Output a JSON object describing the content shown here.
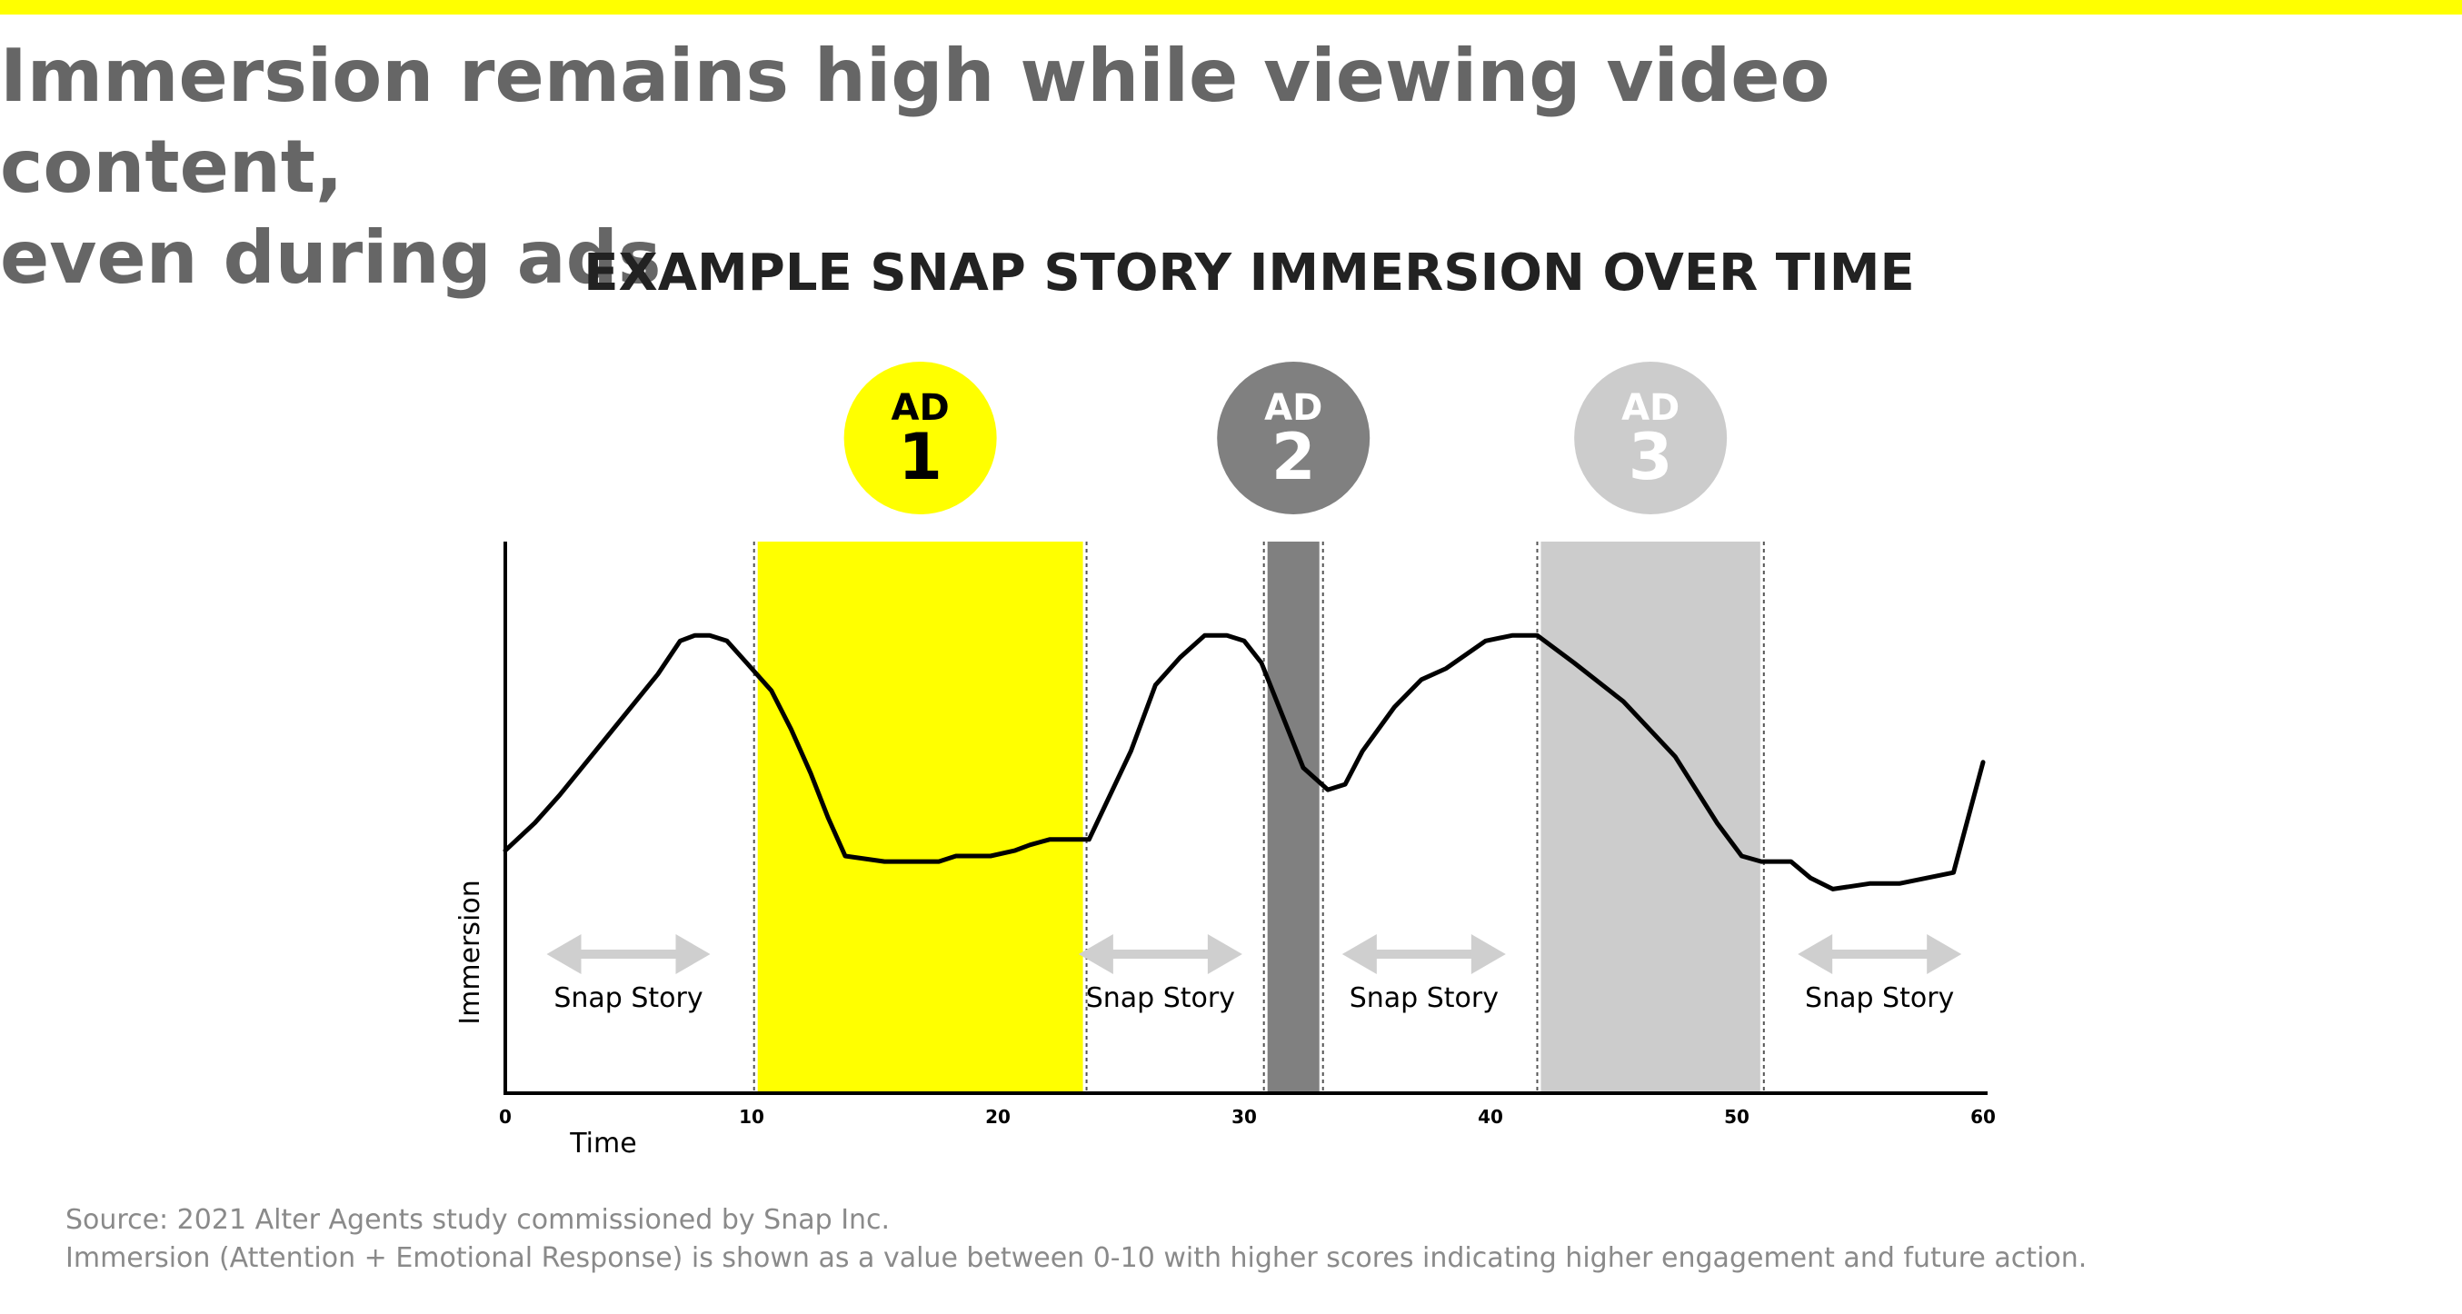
{
  "headline": {
    "line1": "Immersion remains high while viewing video content,",
    "line2": "even during ads"
  },
  "colors": {
    "accent_yellow": "#ffff00",
    "ad2_gray": "#808080",
    "ad3_gray": "#cccccc",
    "arrow_gray": "#cfcfcf",
    "headline_gray": "#666666"
  },
  "chart_data": {
    "type": "line",
    "title": "EXAMPLE SNAP STORY IMMERSION OVER TIME",
    "xlabel": "Time",
    "ylabel": "Immersion",
    "xlim": [
      0,
      60
    ],
    "ylim": [
      0,
      10
    ],
    "xticks": [
      0,
      10,
      20,
      30,
      40,
      50,
      60
    ],
    "grid": false,
    "series": [
      {
        "x": [
          0,
          1.2,
          2.2,
          4.2,
          6.2,
          7.1,
          7.7,
          8.3,
          9.0,
          9.8,
          10.8,
          11.6,
          12.4,
          13.1,
          13.8,
          15.4,
          16.8,
          17.6,
          18.3,
          19.7,
          20.7,
          21.3,
          22.1,
          23.3,
          23.7,
          25.4,
          26.4,
          27.4,
          28.4,
          29.3,
          30.0,
          30.7,
          32.4,
          33.4,
          34.1,
          34.8,
          36.1,
          37.2,
          38.2,
          39.8,
          40.9,
          41.9,
          43.4,
          45.4,
          47.5,
          49.2,
          50.2,
          51.0,
          52.2,
          53.0,
          53.9,
          55.4,
          56.6,
          58.8,
          60.0
        ],
        "y": [
          4.4,
          4.9,
          5.4,
          6.5,
          7.6,
          8.2,
          8.3,
          8.3,
          8.2,
          7.8,
          7.3,
          6.6,
          5.8,
          5.0,
          4.3,
          4.2,
          4.2,
          4.2,
          4.3,
          4.3,
          4.4,
          4.5,
          4.6,
          4.6,
          4.6,
          6.2,
          7.4,
          7.9,
          8.3,
          8.3,
          8.2,
          7.8,
          5.9,
          5.5,
          5.6,
          6.2,
          7.0,
          7.5,
          7.7,
          8.2,
          8.3,
          8.3,
          7.8,
          7.1,
          6.1,
          4.9,
          4.3,
          4.2,
          4.2,
          3.9,
          3.7,
          3.8,
          3.8,
          4.0,
          6.0
        ]
      }
    ],
    "ad_blocks": [
      {
        "label": "AD",
        "number": "1",
        "start": 10.1,
        "end": 23.6,
        "color": "#ffff00",
        "badge_text": "#000000"
      },
      {
        "label": "AD",
        "number": "2",
        "start": 30.8,
        "end": 33.2,
        "color": "#808080",
        "badge_text": "#ffffff"
      },
      {
        "label": "AD",
        "number": "3",
        "start": 41.9,
        "end": 51.1,
        "color": "#cccccc",
        "badge_text": "#ffffff"
      }
    ],
    "annotations": [
      {
        "text": "Snap Story",
        "x_center": 5.0
      },
      {
        "text": "Snap Story",
        "x_center": 26.6
      },
      {
        "text": "Snap Story",
        "x_center": 37.3
      },
      {
        "text": "Snap Story",
        "x_center": 55.8
      }
    ]
  },
  "footnotes": {
    "source": "Source: 2021 Alter Agents study commissioned by Snap Inc.",
    "note": "Immersion (Attention + Emotional Response) is shown as a value between 0-10 with higher scores indicating higher engagement and future action."
  }
}
